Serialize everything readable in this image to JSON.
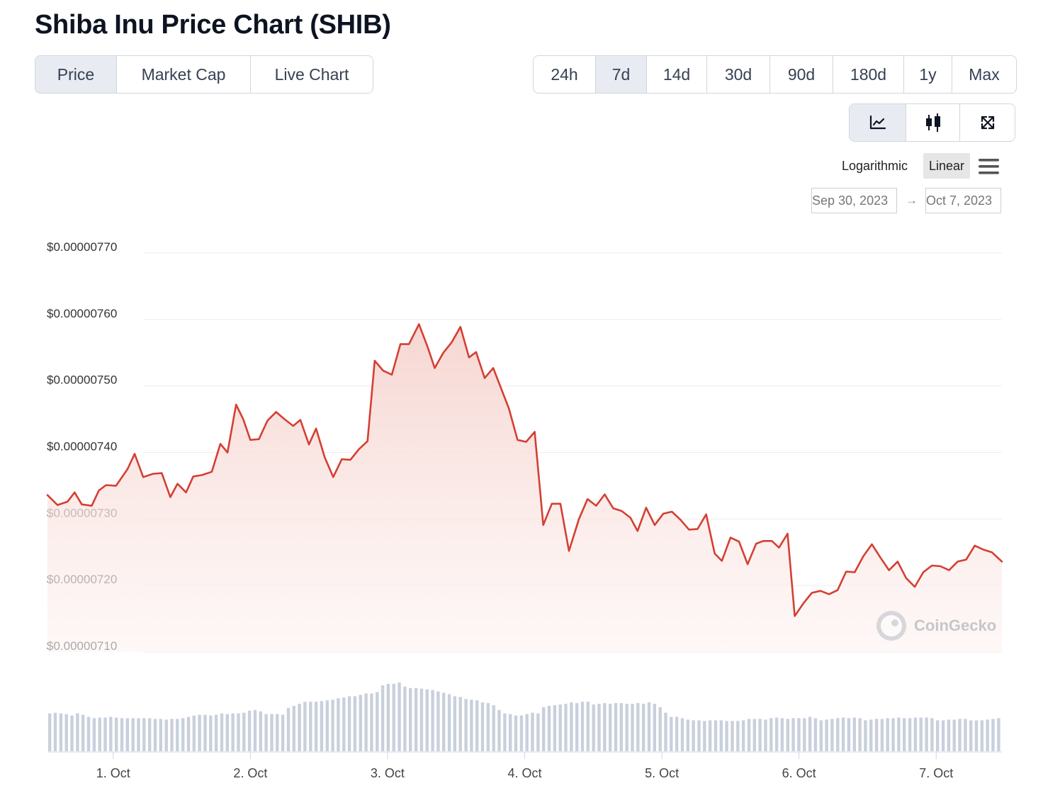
{
  "page": {
    "title": "Shiba Inu Price Chart (SHIB)"
  },
  "tabs": [
    {
      "label": "Price",
      "active": true
    },
    {
      "label": "Market Cap",
      "active": false
    },
    {
      "label": "Live Chart",
      "active": false
    }
  ],
  "ranges": [
    {
      "label": "24h",
      "active": false
    },
    {
      "label": "7d",
      "active": true
    },
    {
      "label": "14d",
      "active": false
    },
    {
      "label": "30d",
      "active": false
    },
    {
      "label": "90d",
      "active": false
    },
    {
      "label": "180d",
      "active": false
    },
    {
      "label": "1y",
      "active": false
    },
    {
      "label": "Max",
      "active": false
    }
  ],
  "chart_types": [
    {
      "icon": "line-chart-icon",
      "active": true
    },
    {
      "icon": "candlestick-icon",
      "active": false
    },
    {
      "icon": "fullscreen-icon",
      "active": false
    }
  ],
  "scale": {
    "logarithmic_label": "Logarithmic",
    "linear_label": "Linear",
    "selected": "Linear"
  },
  "date_range": {
    "from": "Sep 30, 2023",
    "arrow": "→",
    "to": "Oct 7, 2023"
  },
  "watermark": "CoinGecko",
  "colors": {
    "line": "#d43f33",
    "fill_top": "#f6d4cf",
    "volume": "#c9d0dc",
    "grid": "#ececec"
  },
  "chart_data": {
    "type": "line",
    "title": "",
    "xlabel": "",
    "ylabel": "",
    "ylim": [
      7.1e-06,
      7.7e-06
    ],
    "y_ticks": [
      {
        "value": 7.7e-06,
        "label": "$0.00000770"
      },
      {
        "value": 7.6e-06,
        "label": "$0.00000760"
      },
      {
        "value": 7.5e-06,
        "label": "$0.00000750"
      },
      {
        "value": 7.4e-06,
        "label": "$0.00000740"
      },
      {
        "value": 7.3e-06,
        "label": "$0.00000730"
      },
      {
        "value": 7.2e-06,
        "label": "$0.00000720"
      },
      {
        "value": 7.1e-06,
        "label": "$0.00000710"
      }
    ],
    "x_range": [
      "2023-09-30T12:30",
      "2023-10-07T11:30"
    ],
    "x_ticks": [
      {
        "value": "2023-10-01T00:00",
        "label": "1. Oct"
      },
      {
        "value": "2023-10-02T00:00",
        "label": "2. Oct"
      },
      {
        "value": "2023-10-03T00:00",
        "label": "3. Oct"
      },
      {
        "value": "2023-10-04T00:00",
        "label": "4. Oct"
      },
      {
        "value": "2023-10-05T00:00",
        "label": "5. Oct"
      },
      {
        "value": "2023-10-06T00:00",
        "label": "6. Oct"
      },
      {
        "value": "2023-10-07T00:00",
        "label": "7. Oct"
      }
    ],
    "grid": true,
    "legend": "none",
    "series": [
      {
        "values": [
          [
            "2023-09-30T12:30",
            7.336e-06
          ],
          [
            "2023-09-30T14:15",
            7.321e-06
          ],
          [
            "2023-09-30T16:00",
            7.326e-06
          ],
          [
            "2023-09-30T17:15",
            7.34e-06
          ],
          [
            "2023-09-30T18:30",
            7.322e-06
          ],
          [
            "2023-09-30T20:15",
            7.32e-06
          ],
          [
            "2023-09-30T21:30",
            7.343e-06
          ],
          [
            "2023-09-30T22:45",
            7.351e-06
          ],
          [
            "2023-10-01T00:30",
            7.35e-06
          ],
          [
            "2023-10-01T02:30",
            7.375e-06
          ],
          [
            "2023-10-01T03:45",
            7.398e-06
          ],
          [
            "2023-10-01T05:15",
            7.363e-06
          ],
          [
            "2023-10-01T07:00",
            7.368e-06
          ],
          [
            "2023-10-01T08:30",
            7.369e-06
          ],
          [
            "2023-10-01T10:00",
            7.333e-06
          ],
          [
            "2023-10-01T11:15",
            7.353e-06
          ],
          [
            "2023-10-01T12:45",
            7.34e-06
          ],
          [
            "2023-10-01T14:00",
            7.364e-06
          ],
          [
            "2023-10-01T15:30",
            7.366e-06
          ],
          [
            "2023-10-01T17:15",
            7.371e-06
          ],
          [
            "2023-10-01T18:45",
            7.413e-06
          ],
          [
            "2023-10-01T20:00",
            7.4e-06
          ],
          [
            "2023-10-01T21:30",
            7.472e-06
          ],
          [
            "2023-10-01T22:45",
            7.45e-06
          ],
          [
            "2023-10-02T00:00",
            7.419e-06
          ],
          [
            "2023-10-02T01:30",
            7.42e-06
          ],
          [
            "2023-10-02T03:00",
            7.448e-06
          ],
          [
            "2023-10-02T04:30",
            7.461e-06
          ],
          [
            "2023-10-02T06:00",
            7.45e-06
          ],
          [
            "2023-10-02T07:30",
            7.44e-06
          ],
          [
            "2023-10-02T08:45",
            7.449e-06
          ],
          [
            "2023-10-02T10:15",
            7.412e-06
          ],
          [
            "2023-10-02T11:30",
            7.436e-06
          ],
          [
            "2023-10-02T13:00",
            7.393e-06
          ],
          [
            "2023-10-02T14:30",
            7.363e-06
          ],
          [
            "2023-10-02T16:00",
            7.39e-06
          ],
          [
            "2023-10-02T17:30",
            7.389e-06
          ],
          [
            "2023-10-02T19:00",
            7.405e-06
          ],
          [
            "2023-10-02T20:30",
            7.417e-06
          ],
          [
            "2023-10-02T21:45",
            7.538e-06
          ],
          [
            "2023-10-02T23:15",
            7.523e-06
          ],
          [
            "2023-10-03T00:45",
            7.517e-06
          ],
          [
            "2023-10-03T02:15",
            7.563e-06
          ],
          [
            "2023-10-03T03:45",
            7.563e-06
          ],
          [
            "2023-10-03T05:30",
            7.593e-06
          ],
          [
            "2023-10-03T07:00",
            7.559e-06
          ],
          [
            "2023-10-03T08:15",
            7.527e-06
          ],
          [
            "2023-10-03T09:45",
            7.55e-06
          ],
          [
            "2023-10-03T11:15",
            7.566e-06
          ],
          [
            "2023-10-03T12:45",
            7.589e-06
          ],
          [
            "2023-10-03T14:15",
            7.543e-06
          ],
          [
            "2023-10-03T15:30",
            7.551e-06
          ],
          [
            "2023-10-03T17:00",
            7.512e-06
          ],
          [
            "2023-10-03T18:30",
            7.527e-06
          ],
          [
            "2023-10-03T21:15",
            7.466e-06
          ],
          [
            "2023-10-03T22:45",
            7.419e-06
          ],
          [
            "2023-10-04T00:15",
            7.416e-06
          ],
          [
            "2023-10-04T01:45",
            7.431e-06
          ],
          [
            "2023-10-04T03:15",
            7.291e-06
          ],
          [
            "2023-10-04T04:45",
            7.323e-06
          ],
          [
            "2023-10-04T06:15",
            7.323e-06
          ],
          [
            "2023-10-04T07:45",
            7.252e-06
          ],
          [
            "2023-10-04T09:30",
            7.3e-06
          ],
          [
            "2023-10-04T11:00",
            7.33e-06
          ],
          [
            "2023-10-04T12:30",
            7.32e-06
          ],
          [
            "2023-10-04T14:00",
            7.337e-06
          ],
          [
            "2023-10-04T15:30",
            7.316e-06
          ],
          [
            "2023-10-04T17:00",
            7.312e-06
          ],
          [
            "2023-10-04T18:30",
            7.302e-06
          ],
          [
            "2023-10-04T19:45",
            7.282e-06
          ],
          [
            "2023-10-04T21:15",
            7.317e-06
          ],
          [
            "2023-10-04T22:45",
            7.291e-06
          ],
          [
            "2023-10-05T00:15",
            7.308e-06
          ],
          [
            "2023-10-05T01:45",
            7.311e-06
          ],
          [
            "2023-10-05T03:15",
            7.299e-06
          ],
          [
            "2023-10-05T04:45",
            7.284e-06
          ],
          [
            "2023-10-05T06:15",
            7.285e-06
          ],
          [
            "2023-10-05T07:45",
            7.307e-06
          ],
          [
            "2023-10-05T09:15",
            7.248e-06
          ],
          [
            "2023-10-05T10:30",
            7.237e-06
          ],
          [
            "2023-10-05T12:00",
            7.272e-06
          ],
          [
            "2023-10-05T13:30",
            7.266e-06
          ],
          [
            "2023-10-05T15:00",
            7.232e-06
          ],
          [
            "2023-10-05T16:30",
            7.263e-06
          ],
          [
            "2023-10-05T17:45",
            7.267e-06
          ],
          [
            "2023-10-05T19:15",
            7.267e-06
          ],
          [
            "2023-10-05T20:30",
            7.257e-06
          ],
          [
            "2023-10-05T22:00",
            7.278e-06
          ],
          [
            "2023-10-05T23:15",
            7.154e-06
          ],
          [
            "2023-10-06T00:45",
            7.173e-06
          ],
          [
            "2023-10-06T02:15",
            7.189e-06
          ],
          [
            "2023-10-06T03:45",
            7.192e-06
          ],
          [
            "2023-10-06T05:15",
            7.187e-06
          ],
          [
            "2023-10-06T06:45",
            7.193e-06
          ],
          [
            "2023-10-06T08:15",
            7.221e-06
          ],
          [
            "2023-10-06T09:45",
            7.22e-06
          ],
          [
            "2023-10-06T11:15",
            7.244e-06
          ],
          [
            "2023-10-06T12:45",
            7.262e-06
          ],
          [
            "2023-10-06T14:15",
            7.242e-06
          ],
          [
            "2023-10-06T15:45",
            7.223e-06
          ],
          [
            "2023-10-06T17:15",
            7.236e-06
          ],
          [
            "2023-10-06T18:45",
            7.211e-06
          ],
          [
            "2023-10-06T20:15",
            7.198e-06
          ],
          [
            "2023-10-06T21:45",
            7.22e-06
          ],
          [
            "2023-10-06T23:15",
            7.23e-06
          ],
          [
            "2023-10-07T00:45",
            7.229e-06
          ],
          [
            "2023-10-07T02:15",
            7.223e-06
          ],
          [
            "2023-10-07T03:45",
            7.236e-06
          ],
          [
            "2023-10-07T05:15",
            7.239e-06
          ],
          [
            "2023-10-07T06:45",
            7.26e-06
          ],
          [
            "2023-10-07T08:15",
            7.254e-06
          ],
          [
            "2023-10-07T09:45",
            7.25e-06
          ],
          [
            "2023-10-07T11:30",
            7.236e-06
          ]
        ]
      }
    ],
    "volume": {
      "values_relative": [
        0.55,
        0.56,
        0.55,
        0.54,
        0.52,
        0.55,
        0.53,
        0.5,
        0.48,
        0.49,
        0.49,
        0.5,
        0.49,
        0.48,
        0.48,
        0.48,
        0.48,
        0.48,
        0.48,
        0.47,
        0.47,
        0.46,
        0.47,
        0.47,
        0.48,
        0.5,
        0.52,
        0.53,
        0.53,
        0.52,
        0.53,
        0.55,
        0.54,
        0.55,
        0.55,
        0.56,
        0.59,
        0.6,
        0.58,
        0.54,
        0.54,
        0.54,
        0.53,
        0.63,
        0.66,
        0.69,
        0.72,
        0.72,
        0.72,
        0.73,
        0.74,
        0.75,
        0.77,
        0.78,
        0.8,
        0.8,
        0.82,
        0.84,
        0.84,
        0.86,
        0.96,
        0.98,
        0.98,
        1.0,
        0.94,
        0.92,
        0.92,
        0.91,
        0.9,
        0.89,
        0.87,
        0.85,
        0.83,
        0.8,
        0.79,
        0.76,
        0.75,
        0.74,
        0.71,
        0.7,
        0.67,
        0.6,
        0.55,
        0.54,
        0.52,
        0.52,
        0.54,
        0.56,
        0.55,
        0.64,
        0.66,
        0.67,
        0.68,
        0.69,
        0.71,
        0.7,
        0.72,
        0.72,
        0.68,
        0.69,
        0.7,
        0.69,
        0.7,
        0.7,
        0.69,
        0.69,
        0.7,
        0.69,
        0.71,
        0.69,
        0.64,
        0.56,
        0.5,
        0.5,
        0.48,
        0.46,
        0.45,
        0.45,
        0.44,
        0.45,
        0.45,
        0.45,
        0.44,
        0.44,
        0.44,
        0.45,
        0.47,
        0.47,
        0.47,
        0.46,
        0.48,
        0.49,
        0.48,
        0.47,
        0.48,
        0.48,
        0.48,
        0.5,
        0.48,
        0.45,
        0.46,
        0.47,
        0.48,
        0.49,
        0.48,
        0.49,
        0.48,
        0.45,
        0.46,
        0.47,
        0.47,
        0.48,
        0.48,
        0.49,
        0.48,
        0.48,
        0.49,
        0.49,
        0.49,
        0.48,
        0.45,
        0.45,
        0.46,
        0.46,
        0.47,
        0.47,
        0.45,
        0.45,
        0.45,
        0.46,
        0.47,
        0.48
      ]
    }
  }
}
